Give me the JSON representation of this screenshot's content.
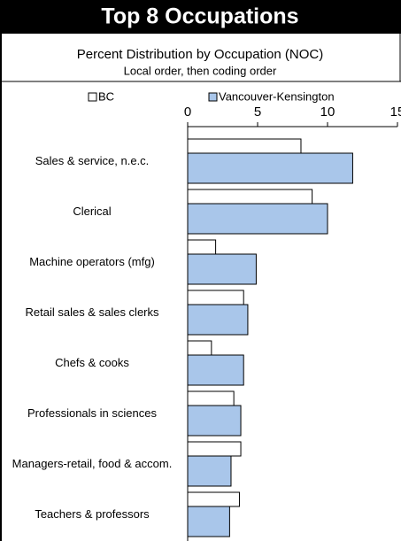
{
  "chart_data": {
    "type": "hbar",
    "title": "Top 8 Occupations",
    "subtitle": "Percent Distribution by Occupation (NOC)",
    "note": "Local order, then coding order",
    "categories": [
      "Sales & service, n.e.c.",
      "Clerical",
      "Machine operators (mfg)",
      "Retail sales & sales clerks",
      "Chefs & cooks",
      "Professionals in sciences",
      "Managers-retail, food & accom.",
      "Teachers & professors"
    ],
    "series": [
      {
        "name": "BC",
        "color": "#ffffff",
        "values": [
          8.1,
          8.9,
          2.0,
          4.0,
          1.7,
          3.3,
          3.8,
          3.7
        ]
      },
      {
        "name": "Vancouver-Kensington",
        "color": "#a9c6ea",
        "values": [
          11.8,
          10.0,
          4.9,
          4.3,
          4.0,
          3.8,
          3.1,
          3.0
        ]
      }
    ],
    "xlim": [
      0,
      15
    ],
    "xticks": [
      0,
      5,
      10,
      15
    ]
  }
}
